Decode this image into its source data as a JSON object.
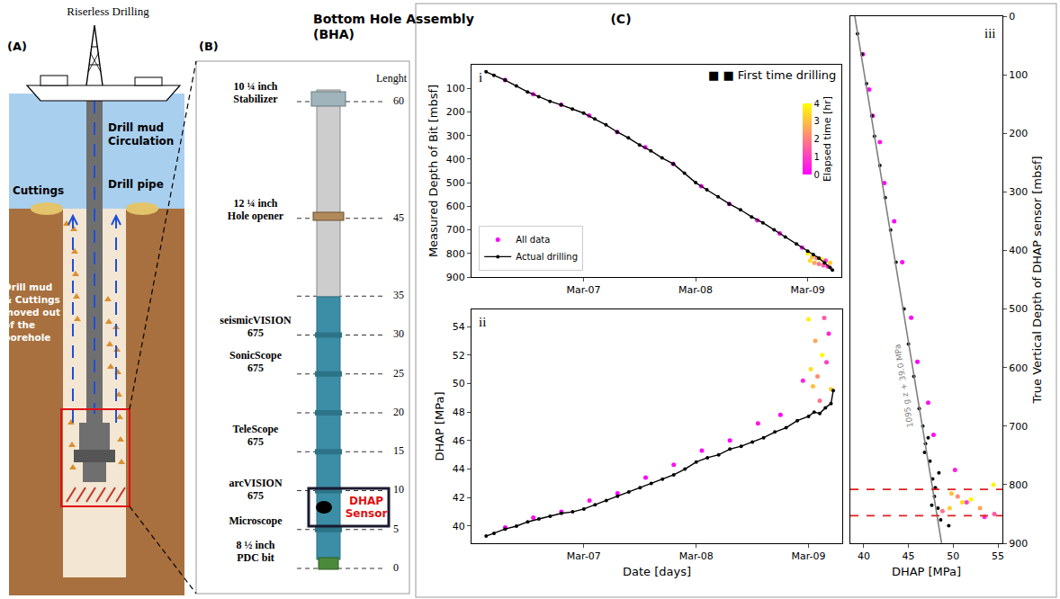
{
  "diagram_a": {
    "panel": "(A)",
    "title": "Riserless Drilling",
    "labels": {
      "circulation": "Drill mud Circulation",
      "pipe": "Drill pipe",
      "cuttings": "Cuttings",
      "outflow": "Drill mud & Cuttings moved out of the borehole"
    }
  },
  "diagram_b": {
    "panel": "(B)",
    "title": "Bottom Hole Assembly (BHA)",
    "axis_label": "Lenght",
    "ticks": [
      0,
      5,
      10,
      15,
      20,
      25,
      30,
      35,
      45,
      60
    ],
    "components": [
      {
        "label": "10 ¼ inch Stabilizer",
        "length": 61
      },
      {
        "label": "12 ¼ inch Hole opener",
        "length": 46
      },
      {
        "label": "seismicVISION 675",
        "length": 31
      },
      {
        "label": "SonicScope 675",
        "length": 26.5
      },
      {
        "label": "TeleScope 675",
        "length": 17
      },
      {
        "label": "arcVISION 675",
        "length": 10
      },
      {
        "label": "Microscope",
        "length": 6
      },
      {
        "label": "8 ½ inch PDC bit",
        "length": 2
      }
    ],
    "sensor": "DHAP Sensor"
  },
  "panel_c": "(C)",
  "chart_data": [
    {
      "type": "scatter",
      "panel": "i",
      "y_label": "Measured Depth of Bit [mbsf]",
      "xlim": [
        6.0,
        9.3
      ],
      "xticks": [
        {
          "value": 7,
          "label": "Mar-07"
        },
        {
          "value": 8,
          "label": "Mar-08"
        },
        {
          "value": 9,
          "label": "Mar-09"
        }
      ],
      "ylim": [
        900,
        0
      ],
      "yticks": [
        100,
        200,
        300,
        400,
        500,
        600,
        700,
        800,
        900
      ],
      "grid": false,
      "legend": "lower left",
      "note": "■ ■ First time drilling",
      "colorbar": {
        "title": "Elapsed time [hr]",
        "range": [
          0,
          4
        ],
        "ticks": [
          0,
          1,
          2,
          3,
          4
        ]
      },
      "series": [
        {
          "name": "All data",
          "marker": "circle",
          "x": [
            6.3,
            6.55,
            6.8,
            7.05,
            7.3,
            7.55,
            7.8,
            8.05,
            8.3,
            8.55,
            8.75,
            8.95,
            9.0,
            9.02,
            9.04,
            9.06,
            9.08,
            9.1,
            9.12,
            9.14,
            9.16,
            9.18,
            9.2
          ],
          "values": [
            65,
            125,
            170,
            215,
            285,
            350,
            420,
            515,
            590,
            660,
            715,
            775,
            800,
            830,
            815,
            840,
            820,
            845,
            825,
            850,
            830,
            855,
            840
          ],
          "elapsed": [
            0,
            0.2,
            0,
            0.3,
            0.1,
            0,
            0.2,
            0.1,
            0,
            0.3,
            0.1,
            0.5,
            3.8,
            3.5,
            3.0,
            2.6,
            2.2,
            1.8,
            3.9,
            1.4,
            1.0,
            0.6,
            3.2
          ]
        },
        {
          "name": "Actual drilling",
          "color": "#000000",
          "marker": "circle",
          "line_style": "solid",
          "x": [
            6.13,
            6.2,
            6.3,
            6.4,
            6.5,
            6.6,
            6.7,
            6.8,
            6.9,
            7.0,
            7.1,
            7.2,
            7.3,
            7.4,
            7.5,
            7.6,
            7.7,
            7.8,
            7.9,
            8.0,
            8.1,
            8.2,
            8.3,
            8.4,
            8.5,
            8.6,
            8.7,
            8.8,
            8.9,
            9.0,
            9.05,
            9.1,
            9.15,
            9.2,
            9.22
          ],
          "values": [
            30,
            45,
            65,
            90,
            115,
            135,
            155,
            170,
            188,
            205,
            230,
            255,
            285,
            310,
            340,
            365,
            395,
            420,
            460,
            500,
            530,
            560,
            590,
            615,
            645,
            670,
            700,
            730,
            760,
            790,
            805,
            820,
            840,
            860,
            870
          ]
        }
      ]
    },
    {
      "type": "scatter",
      "panel": "ii",
      "x_label": "Date [days]",
      "y_label": "DHAP [MPa]",
      "xlim": [
        6.0,
        9.3
      ],
      "xticks": [
        {
          "value": 7,
          "label": "Mar-07"
        },
        {
          "value": 8,
          "label": "Mar-08"
        },
        {
          "value": 9,
          "label": "Mar-09"
        }
      ],
      "ylim": [
        38.8,
        55.2
      ],
      "yticks": [
        40,
        42,
        44,
        46,
        48,
        50,
        52,
        54
      ],
      "grid": false,
      "series": [
        {
          "name": "All data",
          "marker": "circle",
          "x": [
            6.3,
            6.55,
            6.8,
            7.05,
            7.3,
            7.55,
            7.8,
            8.05,
            8.3,
            8.55,
            8.75,
            8.95,
            9.0,
            9.02,
            9.04,
            9.06,
            9.08,
            9.1,
            9.12,
            9.14,
            9.16,
            9.18,
            9.2
          ],
          "values": [
            39.9,
            40.6,
            41.0,
            41.8,
            42.3,
            43.4,
            44.3,
            45.3,
            46.0,
            47.2,
            47.8,
            50.2,
            54.5,
            51.0,
            49.8,
            53.0,
            50.5,
            48.8,
            52.0,
            54.6,
            51.5,
            53.5,
            49.6
          ],
          "elapsed": [
            0,
            0.2,
            0,
            0.3,
            0.1,
            0,
            0.2,
            0.1,
            0,
            0.3,
            0.1,
            0.5,
            3.8,
            3.5,
            3.0,
            2.6,
            2.2,
            1.8,
            3.9,
            1.4,
            1.0,
            0.6,
            3.2
          ]
        },
        {
          "name": "Actual drilling",
          "color": "#000000",
          "marker": "circle",
          "line_style": "solid",
          "x": [
            6.13,
            6.2,
            6.3,
            6.4,
            6.5,
            6.6,
            6.7,
            6.8,
            6.9,
            7.0,
            7.1,
            7.2,
            7.3,
            7.4,
            7.5,
            7.6,
            7.7,
            7.8,
            7.9,
            8.0,
            8.1,
            8.2,
            8.3,
            8.4,
            8.5,
            8.6,
            8.7,
            8.8,
            8.9,
            9.0,
            9.05,
            9.1,
            9.15,
            9.2,
            9.22
          ],
          "values": [
            39.3,
            39.5,
            39.8,
            40.0,
            40.3,
            40.5,
            40.7,
            40.9,
            41.0,
            41.2,
            41.5,
            41.8,
            42.1,
            42.4,
            42.7,
            43.0,
            43.3,
            43.6,
            44.0,
            44.5,
            44.8,
            45.0,
            45.4,
            45.6,
            45.9,
            46.2,
            46.6,
            46.9,
            47.4,
            47.7,
            48.0,
            47.9,
            48.3,
            48.6,
            49.5
          ]
        }
      ]
    },
    {
      "type": "scatter",
      "panel": "iii",
      "x_label": "DHAP [MPa]",
      "y_label": "True Vertical Depth of DHAP sensor [mbsf]",
      "xlim": [
        38.5,
        55.5
      ],
      "xticks": [
        40,
        45,
        50,
        55
      ],
      "ylim": [
        900,
        0
      ],
      "yticks": [
        0,
        100,
        200,
        300,
        400,
        500,
        600,
        700,
        800,
        900
      ],
      "grid": false,
      "reference_lines": [
        {
          "y": 808,
          "color": "#e02020",
          "line_style": "dashed"
        },
        {
          "y": 853,
          "color": "#e02020",
          "line_style": "dashed"
        }
      ],
      "series": [
        {
          "name": "All data",
          "marker": "circle",
          "x": [
            39.9,
            40.6,
            41.0,
            41.8,
            42.3,
            43.4,
            44.3,
            45.3,
            46.0,
            47.2,
            47.8,
            50.2,
            54.5,
            51.0,
            49.8,
            53.0,
            50.5,
            48.8,
            52.0,
            54.6,
            51.5,
            53.5,
            49.6
          ],
          "values": [
            65,
            125,
            170,
            215,
            285,
            350,
            420,
            515,
            590,
            660,
            715,
            775,
            800,
            830,
            815,
            840,
            820,
            845,
            825,
            850,
            830,
            855,
            840
          ],
          "elapsed": [
            0,
            0.2,
            0,
            0.3,
            0.1,
            0,
            0.2,
            0.1,
            0,
            0.3,
            0.1,
            0.5,
            3.8,
            3.5,
            3.0,
            2.6,
            2.2,
            1.8,
            3.9,
            1.4,
            1.0,
            0.6,
            3.2
          ]
        },
        {
          "name": "Actual drilling",
          "color": "#000000",
          "marker": "circle",
          "x": [
            39.3,
            39.8,
            40.3,
            40.9,
            41.2,
            41.8,
            42.4,
            43.0,
            43.6,
            44.5,
            45.0,
            45.6,
            46.2,
            46.6,
            46.9,
            47.4,
            47.7,
            48.0,
            47.9,
            48.3,
            48.6,
            49.5,
            47.2,
            46.8,
            48.4,
            47.6
          ],
          "values": [
            30,
            65,
            115,
            170,
            205,
            255,
            310,
            365,
            420,
            500,
            560,
            615,
            670,
            700,
            730,
            760,
            790,
            805,
            820,
            840,
            860,
            870,
            720,
            745,
            780,
            835
          ]
        },
        {
          "name": "1095 g z + 39.0 MPa",
          "type": "line",
          "color": "#808080",
          "line_style": "solid",
          "x": [
            39.0,
            48.7
          ],
          "values": [
            0,
            900
          ]
        }
      ]
    }
  ]
}
